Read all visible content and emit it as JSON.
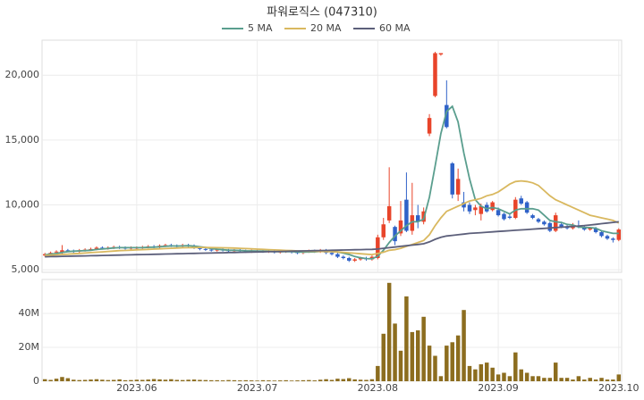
{
  "chart_data": {
    "type": "candlestick",
    "title": "파워로직스 (047310)",
    "categories": [
      null,
      null,
      null,
      null,
      null,
      null,
      null,
      null,
      null,
      null,
      null,
      null,
      null,
      null,
      null,
      null,
      "2023.06",
      null,
      null,
      null,
      null,
      null,
      null,
      null,
      null,
      null,
      null,
      null,
      null,
      null,
      null,
      null,
      null,
      null,
      null,
      null,
      null,
      "2023.07",
      null,
      null,
      null,
      null,
      null,
      null,
      null,
      null,
      null,
      null,
      null,
      null,
      null,
      null,
      null,
      null,
      null,
      null,
      null,
      null,
      "2023.08",
      null,
      null,
      null,
      null,
      null,
      null,
      null,
      null,
      null,
      null,
      null,
      null,
      null,
      null,
      null,
      null,
      null,
      null,
      null,
      null,
      "2023.09",
      null,
      null,
      null,
      null,
      null,
      null,
      null,
      null,
      null,
      null,
      null,
      null,
      null,
      null,
      null,
      null,
      null,
      null,
      null,
      null,
      "2023.10"
    ],
    "open": [
      6100,
      6200,
      6350,
      6300,
      6500,
      6450,
      6400,
      6500,
      6550,
      6600,
      6700,
      6650,
      6700,
      6750,
      6700,
      6650,
      6680,
      6700,
      6750,
      6800,
      6750,
      6850,
      6900,
      6850,
      6800,
      6900,
      6850,
      6700,
      6600,
      6550,
      6500,
      6550,
      6500,
      6450,
      6500,
      6450,
      6400,
      6420,
      6450,
      6400,
      6420,
      6350,
      6400,
      6420,
      6350,
      6300,
      6400,
      6450,
      6400,
      6500,
      6300,
      6200,
      6000,
      5900,
      5700,
      5800,
      5900,
      5800,
      5900,
      7500,
      8800,
      8300,
      7800,
      10400,
      8000,
      9200,
      8700,
      15500,
      18400,
      21600,
      17700,
      13200,
      10800,
      10200,
      10000,
      9600,
      9300,
      10000,
      9600,
      9600,
      9300,
      9100,
      9000,
      10500,
      10200,
      9200,
      8900,
      8700,
      8600,
      8000,
      8500,
      8300,
      8200,
      8400,
      8300,
      8100,
      8200,
      7900,
      7600,
      7400,
      7300
    ],
    "high": [
      6300,
      6400,
      6500,
      6900,
      6600,
      6550,
      6600,
      6650,
      6700,
      6800,
      6800,
      6800,
      6850,
      6850,
      6800,
      6800,
      6800,
      6850,
      6900,
      6900,
      6950,
      7000,
      7000,
      6950,
      7000,
      7000,
      6950,
      6800,
      6700,
      6650,
      6650,
      6650,
      6600,
      6600,
      6600,
      6550,
      6550,
      6550,
      6550,
      6520,
      6520,
      6500,
      6520,
      6520,
      6450,
      6500,
      6550,
      6550,
      6600,
      6600,
      6400,
      6300,
      6100,
      6000,
      5900,
      6000,
      6000,
      6100,
      7700,
      9000,
      12900,
      8400,
      10300,
      12500,
      11700,
      10000,
      9800,
      17000,
      21800,
      21700,
      19600,
      13300,
      12800,
      11000,
      10200,
      10000,
      10100,
      10200,
      10300,
      9800,
      9400,
      9300,
      10600,
      10700,
      10300,
      9300,
      9000,
      8800,
      8700,
      9400,
      8700,
      8500,
      8600,
      8800,
      8400,
      8300,
      8300,
      8000,
      7700,
      7500,
      8200
    ],
    "low": [
      6000,
      6100,
      6250,
      6200,
      6350,
      6300,
      6300,
      6400,
      6450,
      6500,
      6550,
      6550,
      6600,
      6600,
      6550,
      6550,
      6580,
      6600,
      6650,
      6650,
      6650,
      6750,
      6750,
      6700,
      6700,
      6750,
      6600,
      6500,
      6450,
      6400,
      6400,
      6400,
      6350,
      6350,
      6350,
      6300,
      6300,
      6320,
      6300,
      6300,
      6250,
      6250,
      6300,
      6250,
      6200,
      6200,
      6300,
      6300,
      6300,
      6200,
      6100,
      5900,
      5800,
      5600,
      5600,
      5700,
      5700,
      5700,
      5800,
      7300,
      8600,
      6900,
      7600,
      7900,
      7700,
      8200,
      8500,
      15300,
      18300,
      21500,
      15900,
      10500,
      10300,
      9500,
      9300,
      9200,
      8800,
      9400,
      9500,
      9100,
      8800,
      8900,
      8900,
      10000,
      9300,
      8900,
      8600,
      8400,
      7900,
      7900,
      8200,
      8100,
      8100,
      8200,
      8000,
      8000,
      7800,
      7500,
      7300,
      7100,
      7200
    ],
    "close": [
      6200,
      6300,
      6400,
      6500,
      6450,
      6400,
      6500,
      6550,
      6600,
      6700,
      6650,
      6700,
      6750,
      6700,
      6650,
      6700,
      6700,
      6750,
      6800,
      6750,
      6850,
      6900,
      6850,
      6800,
      6900,
      6850,
      6700,
      6600,
      6550,
      6500,
      6550,
      6500,
      6450,
      6500,
      6450,
      6400,
      6450,
      6450,
      6400,
      6420,
      6350,
      6400,
      6420,
      6350,
      6300,
      6400,
      6450,
      6400,
      6500,
      6300,
      6200,
      6000,
      5900,
      5700,
      5800,
      5900,
      5800,
      6000,
      7500,
      8500,
      9900,
      7200,
      8800,
      8000,
      9200,
      8700,
      9500,
      16700,
      21700,
      21700,
      16000,
      10800,
      12000,
      9800,
      9500,
      9800,
      9900,
      9500,
      10200,
      9200,
      8900,
      9000,
      10400,
      10100,
      9400,
      9000,
      8700,
      8500,
      8000,
      9200,
      8300,
      8200,
      8400,
      8300,
      8100,
      8200,
      7900,
      7600,
      7400,
      7300,
      8100
    ],
    "up_color": "#e8442a",
    "down_color": "#2f62c8",
    "ylim": [
      4800,
      22700
    ],
    "yticks": [
      {
        "value": 5000,
        "label": "5,000"
      },
      {
        "value": 10000,
        "label": "10,000"
      },
      {
        "value": 15000,
        "label": "15,000"
      },
      {
        "value": 20000,
        "label": "20,000"
      }
    ],
    "grid": true,
    "series": [
      {
        "name": "5 MA",
        "color": "#5a9e8e",
        "values": [
          6150,
          6200,
          6250,
          6330,
          6400,
          6430,
          6450,
          6470,
          6500,
          6560,
          6600,
          6640,
          6680,
          6700,
          6700,
          6700,
          6700,
          6710,
          6730,
          6740,
          6770,
          6810,
          6830,
          6830,
          6840,
          6860,
          6820,
          6770,
          6720,
          6640,
          6580,
          6540,
          6510,
          6500,
          6490,
          6460,
          6450,
          6440,
          6430,
          6420,
          6400,
          6390,
          6400,
          6390,
          6370,
          6360,
          6370,
          6380,
          6410,
          6430,
          6410,
          6370,
          6280,
          6180,
          6020,
          5920,
          5860,
          5840,
          6040,
          6500,
          7100,
          7600,
          8000,
          8400,
          8700,
          8700,
          8900,
          10600,
          13000,
          15500,
          17200,
          17600,
          16400,
          14000,
          12000,
          10400,
          9900,
          9700,
          9800,
          9700,
          9500,
          9300,
          9600,
          9700,
          9700,
          9700,
          9600,
          9200,
          8800,
          8700,
          8650,
          8500,
          8450,
          8300,
          8250,
          8250,
          8200,
          8000,
          7900,
          7800,
          7800
        ]
      },
      {
        "name": "20 MA",
        "color": "#d9b85f",
        "values": [
          6100,
          6120,
          6150,
          6180,
          6200,
          6230,
          6260,
          6290,
          6320,
          6350,
          6380,
          6410,
          6440,
          6470,
          6490,
          6510,
          6530,
          6550,
          6570,
          6590,
          6610,
          6630,
          6650,
          6670,
          6690,
          6700,
          6710,
          6720,
          6720,
          6710,
          6700,
          6690,
          6680,
          6670,
          6650,
          6630,
          6610,
          6590,
          6570,
          6550,
          6530,
          6510,
          6490,
          6470,
          6450,
          6440,
          6430,
          6420,
          6410,
          6400,
          6390,
          6370,
          6340,
          6300,
          6270,
          6230,
          6200,
          6170,
          6250,
          6350,
          6500,
          6550,
          6650,
          6800,
          6950,
          7100,
          7250,
          7700,
          8400,
          9000,
          9500,
          9700,
          9900,
          10100,
          10300,
          10400,
          10500,
          10700,
          10800,
          11000,
          11300,
          11600,
          11800,
          11850,
          11800,
          11700,
          11500,
          11100,
          10700,
          10400,
          10200,
          10000,
          9800,
          9600,
          9400,
          9200,
          9100,
          9000,
          8900,
          8800,
          8600
        ]
      },
      {
        "name": "60 MA",
        "color": "#5c5f7a",
        "values": [
          6000,
          6010,
          6020,
          6030,
          6040,
          6050,
          6060,
          6070,
          6080,
          6090,
          6100,
          6110,
          6120,
          6130,
          6140,
          6150,
          6160,
          6170,
          6180,
          6190,
          6200,
          6210,
          6220,
          6230,
          6240,
          6250,
          6260,
          6270,
          6280,
          6290,
          6300,
          6310,
          6320,
          6330,
          6340,
          6350,
          6360,
          6370,
          6380,
          6390,
          6400,
          6410,
          6420,
          6430,
          6440,
          6450,
          6460,
          6470,
          6480,
          6490,
          6500,
          6510,
          6520,
          6530,
          6540,
          6550,
          6560,
          6570,
          6600,
          6650,
          6700,
          6750,
          6800,
          6850,
          6900,
          6950,
          7000,
          7150,
          7350,
          7500,
          7600,
          7650,
          7700,
          7750,
          7800,
          7830,
          7860,
          7890,
          7920,
          7950,
          7980,
          8010,
          8040,
          8070,
          8100,
          8130,
          8160,
          8190,
          8220,
          8250,
          8280,
          8310,
          8340,
          8370,
          8400,
          8450,
          8500,
          8550,
          8600,
          8650,
          8700
        ]
      }
    ],
    "volume": {
      "color": "#8c6d1f",
      "values": [
        1200000,
        800000,
        1500000,
        2500000,
        1800000,
        900000,
        700000,
        800000,
        1000000,
        1200000,
        900000,
        700000,
        800000,
        1100000,
        600000,
        700000,
        900000,
        800000,
        1000000,
        1300000,
        1100000,
        900000,
        1200000,
        800000,
        700000,
        900000,
        1000000,
        800000,
        700000,
        600000,
        600000,
        500000,
        700000,
        600000,
        500000,
        600000,
        500000,
        400000,
        600000,
        500000,
        400000,
        500000,
        600000,
        400000,
        500000,
        600000,
        700000,
        500000,
        900000,
        1200000,
        800000,
        1500000,
        1300000,
        1800000,
        1100000,
        900000,
        800000,
        1200000,
        9000000,
        28000000,
        58000000,
        34000000,
        18000000,
        50000000,
        29000000,
        30000000,
        38000000,
        21000000,
        15000000,
        3000000,
        21000000,
        23000000,
        27000000,
        42000000,
        9000000,
        7000000,
        10000000,
        11000000,
        8000000,
        4000000,
        5000000,
        3000000,
        17000000,
        7000000,
        5000000,
        3000000,
        3000000,
        2000000,
        2000000,
        11000000,
        2000000,
        2000000,
        1000000,
        3000000,
        1000000,
        2000000,
        1000000,
        2000000,
        1000000,
        1000000,
        4000000
      ],
      "ylim": [
        0,
        60000000
      ],
      "yticks": [
        0,
        {
          "value": 20000000,
          "label": "20M"
        },
        {
          "value": 40000000,
          "label": "40M"
        }
      ]
    }
  }
}
